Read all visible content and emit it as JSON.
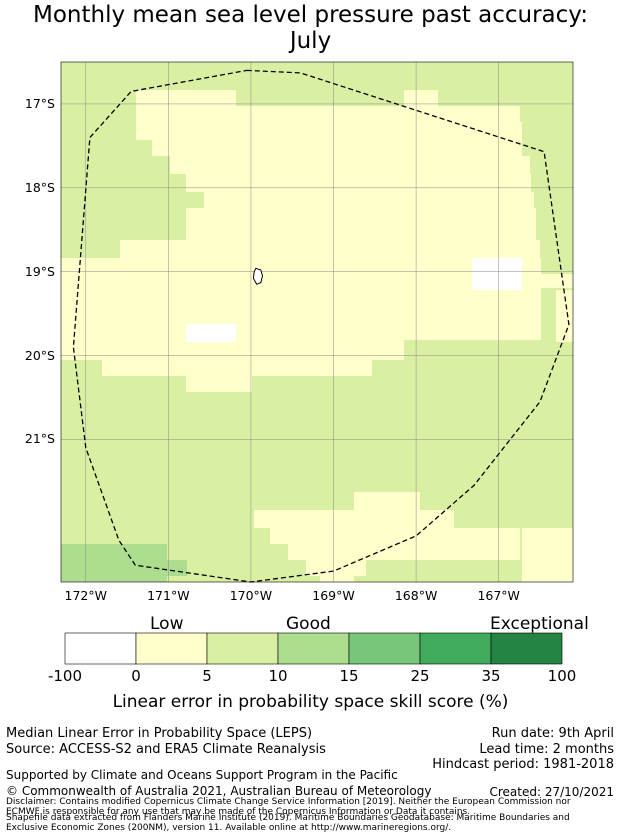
{
  "title_line1": "Monthly mean sea level pressure past accuracy:",
  "title_line2": "July",
  "map": {
    "lon_range": [
      -172.3,
      -166.1
    ],
    "lat_range": [
      -22.7,
      -16.5
    ],
    "lat_ticks": [
      {
        "value": -17,
        "label": "17°S"
      },
      {
        "value": -18,
        "label": "18°S"
      },
      {
        "value": -19,
        "label": "19°S"
      },
      {
        "value": -20,
        "label": "20°S"
      },
      {
        "value": -21,
        "label": "21°S"
      }
    ],
    "lon_ticks": [
      {
        "value": -172,
        "label": "172°W"
      },
      {
        "value": -171,
        "label": "171°W"
      },
      {
        "value": -170,
        "label": "170°W"
      },
      {
        "value": -169,
        "label": "169°W"
      },
      {
        "value": -168,
        "label": "168°W"
      },
      {
        "value": -167,
        "label": "167°W"
      }
    ],
    "category_colors": {
      "1": "#ffffcc",
      "2": "#d9f0a3",
      "3": "#addd8e"
    },
    "eez_boundary": [
      [
        -170.05,
        -16.6
      ],
      [
        -169.4,
        -16.63
      ],
      [
        -166.45,
        -17.57
      ],
      [
        -166.15,
        -19.63
      ],
      [
        -166.5,
        -20.55
      ],
      [
        -167.3,
        -21.55
      ],
      [
        -168.0,
        -22.15
      ],
      [
        -169.0,
        -22.57
      ],
      [
        -170.0,
        -22.7
      ],
      [
        -171.4,
        -22.5
      ],
      [
        -171.6,
        -22.2
      ],
      [
        -172.0,
        -21.1
      ],
      [
        -172.15,
        -19.9
      ],
      [
        -171.95,
        -17.4
      ],
      [
        -171.45,
        -16.85
      ],
      [
        -170.05,
        -16.6
      ]
    ],
    "island_outline": [
      [
        -169.94,
        -18.96
      ],
      [
        -169.88,
        -18.98
      ],
      [
        -169.86,
        -19.05
      ],
      [
        -169.88,
        -19.13
      ],
      [
        -169.93,
        -19.15
      ],
      [
        -169.97,
        -19.08
      ],
      [
        -169.96,
        -19.0
      ],
      [
        -169.94,
        -18.96
      ]
    ]
  },
  "colorbar": {
    "title": "Linear error in probability space skill score (%)",
    "ticks": [
      "-100",
      "0",
      "5",
      "10",
      "15",
      "25",
      "35",
      "100"
    ],
    "colors": [
      "#ffffff",
      "#ffffcc",
      "#d9f0a3",
      "#addd8e",
      "#78c679",
      "#41ab5d",
      "#238443"
    ],
    "categories": [
      "Low",
      "Good",
      "Exceptional"
    ]
  },
  "footer": {
    "line1": "Median Linear Error in Probability Space (LEPS)",
    "line2": "Source: ACCESS-S2 and ERA5 Climate Reanalysis",
    "run_date": "Run date: 9th April",
    "lead_time": "Lead time: 2 months",
    "hindcast": "Hindcast period: 1981-2018",
    "support": "Supported by Climate and Oceans Support Program in the Pacific",
    "copyright": "© Commonwealth of Australia 2021, Australian Bureau of Meteorology",
    "created": "Created: 27/10/2021",
    "disclaimer1": "Disclaimer: Contains modified Copernicus Climate Change Service Information [2019]. Neither the European Commission nor",
    "disclaimer2": "ECMWF is responsible for any use that may be made of the Copernicus Information or Data it contains.",
    "shapefile1": "Shapefile data extracted from Flanders Marine Institute (2019). Maritime Boundaries Geodatabase: Maritime Boundaries and",
    "shapefile2": "Exclusive Economic Zones (200NM), version 11. Available online at http://www.marineregions.org/."
  }
}
